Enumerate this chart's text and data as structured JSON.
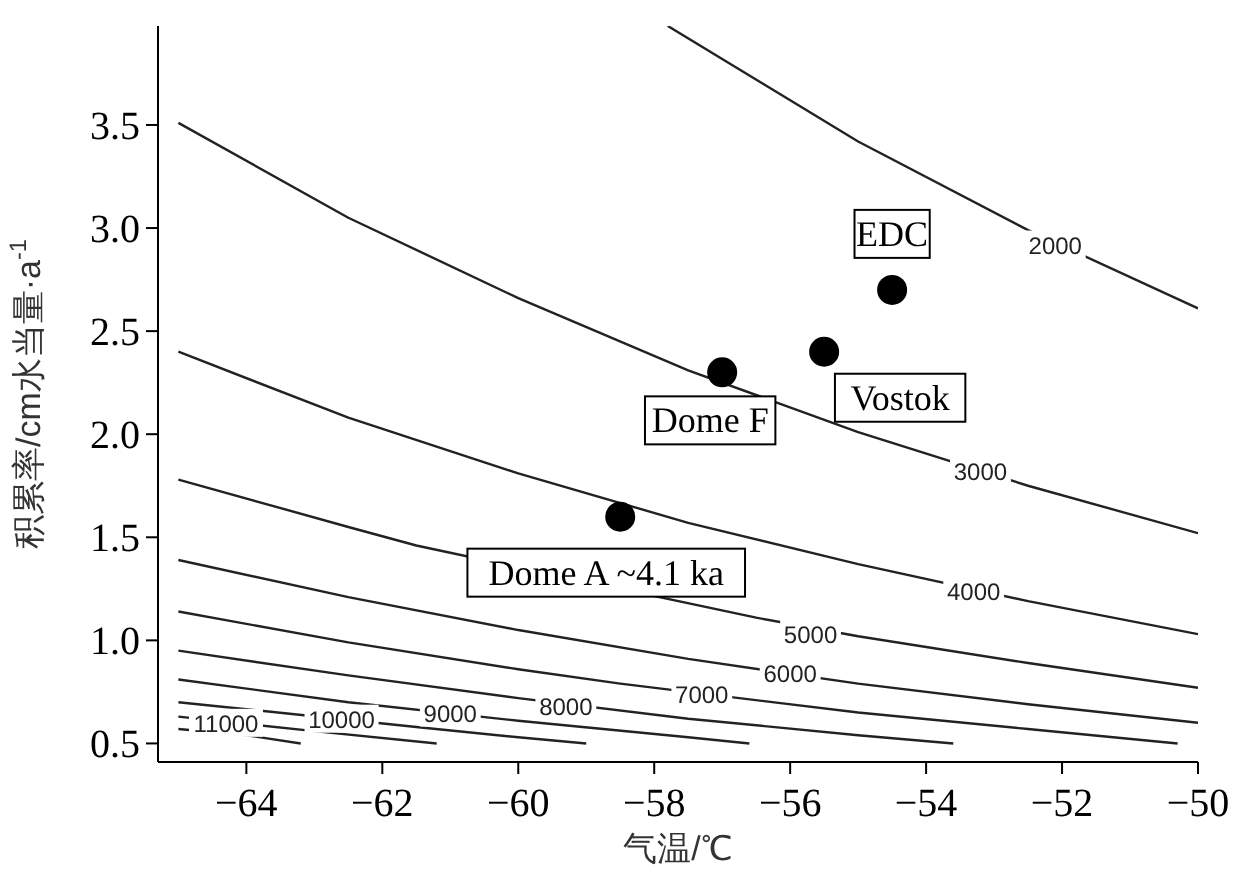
{
  "chart_data": {
    "type": "line",
    "xlabel": "气温/℃",
    "ylabel": "积累率/cm水当量·a$^{-1}$",
    "xlim": [
      -65.3,
      -50
    ],
    "ylim": [
      0.41,
      3.98
    ],
    "xticks": [
      {
        "value": -64,
        "label": "−64"
      },
      {
        "value": -62,
        "label": "−62"
      },
      {
        "value": -60,
        "label": "−60"
      },
      {
        "value": -58,
        "label": "−58"
      },
      {
        "value": -56,
        "label": "−56"
      },
      {
        "value": -54,
        "label": "−54"
      },
      {
        "value": -52,
        "label": "−52"
      },
      {
        "value": -50,
        "label": "−50"
      }
    ],
    "yticks": [
      {
        "value": 0.5,
        "label": "0.5"
      },
      {
        "value": 1,
        "label": "1.0"
      },
      {
        "value": 1.5,
        "label": "1.5"
      },
      {
        "value": 2,
        "label": "2.0"
      },
      {
        "value": 2.5,
        "label": "2.5"
      },
      {
        "value": 3,
        "label": "3.0"
      },
      {
        "value": 3.5,
        "label": "3.5"
      }
    ],
    "grid": false,
    "series": [
      {
        "color": "#222222",
        "x": [
          -57.8,
          -55,
          -52.5,
          -50
        ],
        "values": [
          3.98,
          3.42,
          2.99,
          2.61
        ]
      },
      {
        "color": "#222222",
        "x": [
          -65,
          -62.5,
          -60,
          -57.5,
          -55,
          -52.5,
          -50
        ],
        "values": [
          3.51,
          3.05,
          2.66,
          2.31,
          2.01,
          1.75,
          1.52
        ]
      },
      {
        "color": "#222222",
        "x": [
          -65,
          -62.5,
          -60,
          -57.5,
          -55,
          -52.5,
          -50
        ],
        "values": [
          2.4,
          2.08,
          1.81,
          1.57,
          1.37,
          1.19,
          1.03
        ]
      },
      {
        "color": "#222222",
        "x": [
          -65,
          -62.5,
          -61.5,
          -56.5,
          -55,
          -52.5,
          -50
        ],
        "values": [
          1.78,
          1.55,
          1.46,
          1.11,
          1.02,
          0.89,
          0.77
        ]
      },
      {
        "color": "#222222",
        "x": [
          -65,
          -62.5,
          -60,
          -57.5,
          -55,
          -52.5,
          -50
        ],
        "values": [
          1.39,
          1.21,
          1.05,
          0.91,
          0.79,
          0.69,
          0.6
        ]
      },
      {
        "color": "#222222",
        "x": [
          -65,
          -62.5,
          -60,
          -58.5,
          -55,
          -52.5,
          -50.3
        ],
        "values": [
          1.14,
          0.99,
          0.86,
          0.79,
          0.65,
          0.57,
          0.5
        ]
      },
      {
        "color": "#222222",
        "x": [
          -65,
          -62.5,
          -60,
          -57.5,
          -55,
          -53.6
        ],
        "values": [
          0.95,
          0.83,
          0.72,
          0.62,
          0.54,
          0.5
        ]
      },
      {
        "color": "#222222",
        "x": [
          -65,
          -62.5,
          -60,
          -57.5,
          -56.6
        ],
        "values": [
          0.81,
          0.7,
          0.61,
          0.53,
          0.5
        ]
      },
      {
        "color": "#222222",
        "x": [
          -65,
          -61.5,
          -60,
          -59
        ],
        "values": [
          0.7,
          0.58,
          0.53,
          0.5
        ]
      },
      {
        "color": "#222222",
        "x": [
          -65,
          -63,
          -61.2
        ],
        "values": [
          0.63,
          0.56,
          0.5
        ]
      },
      {
        "color": "#222222",
        "x": [
          -65,
          -64,
          -63.2
        ],
        "values": [
          0.57,
          0.54,
          0.5
        ]
      },
      {
        "type": "scatter",
        "marker": "circle",
        "color": "#000000",
        "x": [
          -54.5,
          -55.5,
          -57,
          -58.5
        ],
        "values": [
          2.7,
          2.4,
          2.3,
          1.6
        ]
      }
    ],
    "annotations": [
      {
        "text": "2000",
        "x": -52.1,
        "y": 2.92
      },
      {
        "text": "3000",
        "x": -53.2,
        "y": 1.82
      },
      {
        "text": "4000",
        "x": -53.3,
        "y": 1.24
      },
      {
        "text": "5000",
        "x": -55.7,
        "y": 1.03
      },
      {
        "text": "6000",
        "x": -56,
        "y": 0.84
      },
      {
        "text": "7000",
        "x": -57.3,
        "y": 0.74
      },
      {
        "text": "8000",
        "x": -59.3,
        "y": 0.68
      },
      {
        "text": "9000",
        "x": -61,
        "y": 0.65
      },
      {
        "text": "10000",
        "x": -62.6,
        "y": 0.62
      },
      {
        "text": "11000",
        "x": -64.3,
        "y": 0.6
      },
      {
        "text": "EDC",
        "x": -54.5,
        "y": 2.7
      },
      {
        "text": "Vostok",
        "x": -55.5,
        "y": 2.4
      },
      {
        "text": "Dome F",
        "x": -57,
        "y": 2.3
      },
      {
        "text": "Dome A ~4.1 ka",
        "x": -58.5,
        "y": 1.6
      }
    ]
  }
}
